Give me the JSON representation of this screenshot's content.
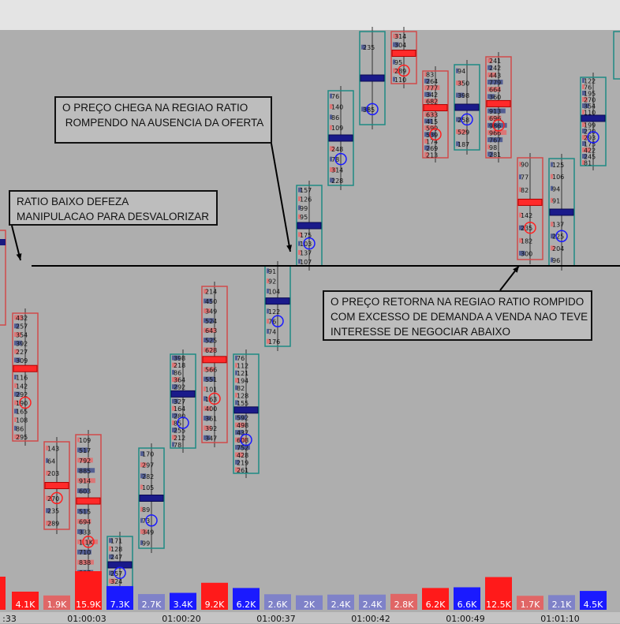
{
  "annotations": [
    {
      "id": "callout-1",
      "text": "O PREÇO CHEGA NA REGIAO RATIO\n ROMPENDO NA AUSENCIA DA OFERTA"
    },
    {
      "id": "callout-2",
      "text": "RATIO BAIXO DEFEZA\nMANIPULACAO PARA DESVALORIZAR"
    },
    {
      "id": "callout-3",
      "text": "O PREÇO RETORNA NA REGIAO RATIO ROMPIDO\nCOM EXCESSO DE DEMANDA A VENDA NAO TEVE\nINTERESSE DE NEGOCIAR ABAIXO"
    }
  ],
  "chart_data": {
    "type": "bar",
    "title": "",
    "x_ticks": [
      ":33",
      "01:00:03",
      "01:00:20",
      "01:00:37",
      "01:00:42",
      "01:00:49",
      "01:01:10"
    ],
    "volume": {
      "labels": [
        "4.1K",
        "1.9K",
        "15.9K",
        "7.3K",
        "2.7K",
        "3.4K",
        "9.2K",
        "6.2K",
        "2.6K",
        "2K",
        "2.4K",
        "2.4K",
        "2.8K",
        "6.2K",
        "6.6K",
        "12.5K",
        "1.7K",
        "2.1K",
        "4.5K"
      ],
      "values": [
        4.1,
        1.9,
        15.9,
        7.3,
        2.7,
        3.4,
        9.2,
        6.2,
        2.6,
        2.0,
        2.4,
        2.4,
        2.8,
        6.2,
        6.6,
        12.5,
        1.7,
        2.1,
        4.5
      ],
      "colors": [
        "#ff1a1a",
        "#e06666",
        "#ff1a1a",
        "#1a1aff",
        "#7f82c8",
        "#1a1aff",
        "#ff1a1a",
        "#1a1aff",
        "#7f82c8",
        "#7f82c8",
        "#7f82c8",
        "#7f82c8",
        "#e06666",
        "#ff1a1a",
        "#1a1aff",
        "#ff1a1a",
        "#e06666",
        "#7f82c8",
        "#1a1aff"
      ]
    },
    "candles": [
      {
        "dir": "down",
        "labels": [
          "432",
          "257",
          "354",
          "392",
          "227",
          "309",
          "229",
          "116",
          "142",
          "292",
          "190",
          "165",
          "108",
          "86",
          "295"
        ]
      },
      {
        "dir": "down",
        "labels": [
          "143",
          "64",
          "203",
          "274",
          "270",
          "235",
          "289"
        ]
      },
      {
        "dir": "down",
        "labels": [
          "109",
          "517",
          "792",
          "885",
          "914",
          "603",
          "514",
          "515",
          "694",
          "333",
          "1.1K",
          "710",
          "838",
          "807",
          "257"
        ]
      },
      {
        "dir": "up",
        "labels": [
          "171",
          "128",
          "247",
          "112",
          "257",
          "324",
          "160"
        ]
      },
      {
        "dir": "up",
        "labels": [
          "170",
          "297",
          "282",
          "105",
          "77",
          "89",
          "73",
          "349",
          "99"
        ]
      },
      {
        "dir": "up",
        "labels": [
          "398",
          "218",
          "86",
          "364",
          "292",
          "95",
          "327",
          "164",
          "280",
          "85",
          "255",
          "212",
          "78"
        ]
      },
      {
        "dir": "down",
        "labels": [
          "214",
          "450",
          "349",
          "524",
          "643",
          "525",
          "628",
          "670",
          "566",
          "551",
          "101",
          "163",
          "400",
          "361",
          "392",
          "347"
        ]
      },
      {
        "dir": "up",
        "labels": [
          "76",
          "112",
          "121",
          "194",
          "82",
          "128",
          "155",
          "710",
          "592",
          "498",
          "437",
          "608",
          "752",
          "428",
          "219",
          "261"
        ]
      },
      {
        "dir": "up",
        "labels": [
          "91",
          "92",
          "104",
          "348",
          "122",
          "76",
          "74",
          "176"
        ]
      },
      {
        "dir": "up",
        "labels": [
          "157",
          "126",
          "99",
          "95",
          "65",
          "175",
          "103",
          "137",
          "107"
        ]
      },
      {
        "dir": "up",
        "labels": [
          "76",
          "140",
          "86",
          "109",
          "92",
          "248",
          "78",
          "314",
          "228"
        ]
      },
      {
        "dir": "up",
        "labels": [
          "235",
          "485",
          "385"
        ]
      },
      {
        "dir": "down",
        "labels": [
          "314",
          "304",
          "275",
          "95",
          "289",
          "110"
        ]
      },
      {
        "dir": "down",
        "labels": [
          "83",
          "264",
          "777",
          "342",
          "682",
          "790",
          "633",
          "415",
          "599",
          "539",
          "174",
          "269",
          "213"
        ]
      },
      {
        "dir": "up",
        "labels": [
          "94",
          "350",
          "398",
          "502",
          "258",
          "529",
          "187"
        ]
      },
      {
        "dir": "down",
        "labels": [
          "241",
          "242",
          "443",
          "779",
          "664",
          "360",
          "815",
          "913",
          "696",
          "986",
          "966",
          "767",
          "98",
          "281"
        ]
      },
      {
        "dir": "down",
        "labels": [
          "90",
          "77",
          "82",
          "71",
          "142",
          "235",
          "182",
          "300"
        ]
      },
      {
        "dir": "up",
        "labels": [
          "125",
          "106",
          "94",
          "91",
          "105",
          "137",
          "225",
          "204",
          "96"
        ]
      },
      {
        "dir": "up",
        "labels": [
          "122",
          "76",
          "195",
          "270",
          "354",
          "110",
          "177",
          "199",
          "220",
          "293",
          "175",
          "422",
          "245",
          "81"
        ]
      }
    ]
  }
}
